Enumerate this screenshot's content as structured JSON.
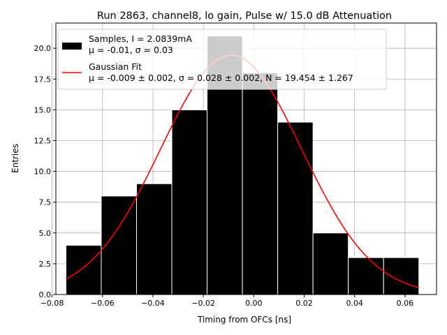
{
  "chart_data": {
    "type": "bar",
    "title": "Run 2863, channel8, lo gain, Pulse w/ 15.0 dB Attenuation",
    "xlabel": "Timing from OFCs [ns]",
    "ylabel": "Entries",
    "xlim": [
      -0.0785,
      0.0725
    ],
    "ylim": [
      0,
      22.05
    ],
    "grid": true,
    "legend_position": "top-left",
    "xticks": [
      -0.08,
      -0.06,
      -0.04,
      -0.02,
      0.0,
      0.02,
      0.04,
      0.06
    ],
    "xtick_labels": [
      "−0.08",
      "−0.06",
      "−0.04",
      "−0.02",
      "0.00",
      "0.02",
      "0.04",
      "0.06"
    ],
    "yticks": [
      0,
      2.5,
      5,
      7.5,
      10,
      12.5,
      15,
      17.5,
      20
    ],
    "ytick_labels": [
      "0.0",
      "2.5",
      "5.0",
      "7.5",
      "10.0",
      "12.5",
      "15.0",
      "17.5",
      "20.0"
    ],
    "histogram": {
      "name": "Samples",
      "bin_edges": [
        -0.0745,
        -0.0605,
        -0.0465,
        -0.0325,
        -0.0185,
        -0.0045,
        0.0095,
        0.0235,
        0.0375,
        0.0515,
        0.0655
      ],
      "counts": [
        4,
        8,
        9,
        15,
        21,
        18,
        14,
        5,
        3,
        3
      ],
      "bar_color": "#000000",
      "edge_color": "#ffffff"
    },
    "fit": {
      "name": "Gaussian Fit",
      "mu": -0.009,
      "sigma": 0.028,
      "amplitude": 19.454,
      "x_range": [
        -0.0745,
        0.0655
      ],
      "color": "#ff0000"
    },
    "legend": [
      {
        "symbol": "patch",
        "color": "#000000",
        "line1": "Samples, I = 2.0839mA",
        "line2": "μ = -0.01, σ = 0.03"
      },
      {
        "symbol": "line",
        "color": "#ff0000",
        "line1": "Gaussian Fit",
        "line2": "μ = -0.009 ± 0.002, σ = 0.028 ± 0.002, N = 19.454 ± 1.267"
      }
    ]
  }
}
